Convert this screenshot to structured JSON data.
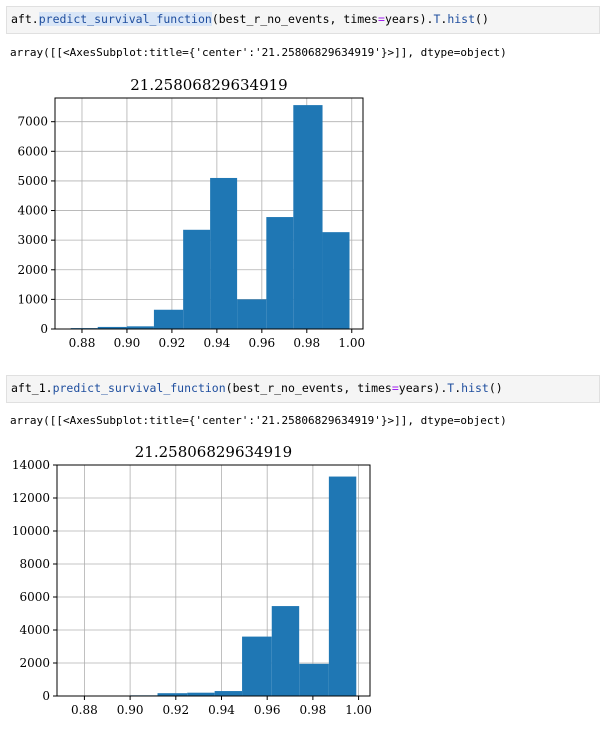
{
  "cells": [
    {
      "code": {
        "obj": "aft",
        "method": "predict_survival_function",
        "arg1": "best_r_no_events",
        "kw": "times",
        "eq": "=",
        "val": "years",
        "attr": "T",
        "call": "hist"
      },
      "output": "array([[<AxesSubplot:title={'center':'21.25806829634919'}>]], dtype=object)"
    },
    {
      "code": {
        "obj": "aft_1",
        "method": "predict_survival_function",
        "arg1": "best_r_no_events",
        "kw": "times",
        "eq": "=",
        "val": "years",
        "attr": "T",
        "call": "hist"
      },
      "output": "array([[<AxesSubplot:title={'center':'21.25806829634919'}>]], dtype=object)"
    }
  ],
  "chart_data": [
    {
      "type": "bar",
      "title": "21.25806829634919",
      "xlabel": "",
      "ylabel": "",
      "bin_edges": [
        0.875,
        0.887,
        0.9,
        0.912,
        0.925,
        0.937,
        0.949,
        0.962,
        0.974,
        0.987,
        0.999
      ],
      "values": [
        30,
        70,
        90,
        650,
        3350,
        5100,
        1000,
        3780,
        7560,
        3270
      ],
      "xlim": [
        0.868,
        1.005
      ],
      "ylim": [
        0,
        7800
      ],
      "xticks": [
        0.88,
        0.9,
        0.92,
        0.94,
        0.96,
        0.98,
        1.0
      ],
      "xtick_labels": [
        "0.88",
        "0.90",
        "0.92",
        "0.94",
        "0.96",
        "0.98",
        "1.00"
      ],
      "yticks": [
        0,
        1000,
        2000,
        3000,
        4000,
        5000,
        6000,
        7000
      ],
      "ytick_labels": [
        "0",
        "1000",
        "2000",
        "3000",
        "4000",
        "5000",
        "6000",
        "7000"
      ],
      "grid": true,
      "bar_color": "#1f77b4"
    },
    {
      "type": "bar",
      "title": "21.25806829634919",
      "xlabel": "",
      "ylabel": "",
      "bin_edges": [
        0.875,
        0.887,
        0.9,
        0.912,
        0.925,
        0.937,
        0.949,
        0.962,
        0.974,
        0.987,
        0.999
      ],
      "values": [
        20,
        20,
        40,
        170,
        200,
        300,
        3600,
        5450,
        1950,
        13300
      ],
      "xlim": [
        0.868,
        1.005
      ],
      "ylim": [
        0,
        14000
      ],
      "xticks": [
        0.88,
        0.9,
        0.92,
        0.94,
        0.96,
        0.98,
        1.0
      ],
      "xtick_labels": [
        "0.88",
        "0.90",
        "0.92",
        "0.94",
        "0.96",
        "0.98",
        "1.00"
      ],
      "yticks": [
        0,
        2000,
        4000,
        6000,
        8000,
        10000,
        12000,
        14000
      ],
      "ytick_labels": [
        "0",
        "2000",
        "4000",
        "6000",
        "8000",
        "10000",
        "12000",
        "14000"
      ],
      "grid": true,
      "bar_color": "#1f77b4"
    }
  ]
}
